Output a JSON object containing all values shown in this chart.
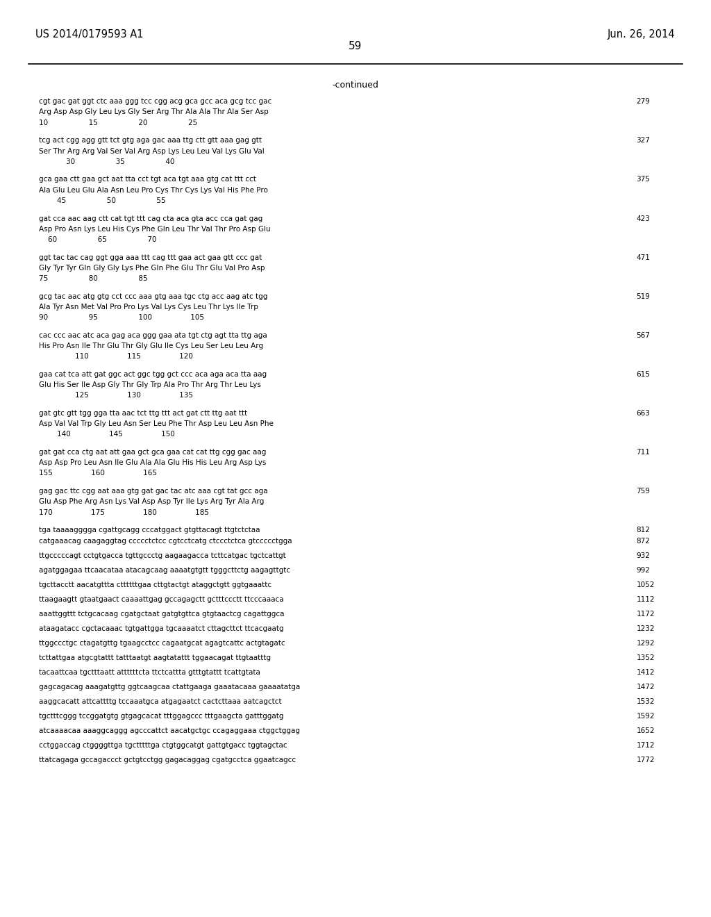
{
  "patent_left": "US 2014/0179593 A1",
  "patent_right": "Jun. 26, 2014",
  "page_number": "59",
  "continued_label": "-continued",
  "background_color": "#ffffff",
  "text_color": "#000000",
  "font_size_header": 10.5,
  "font_size_page": 11,
  "sequence_blocks": [
    {
      "dna": "cgt gac gat ggt ctc aaa ggg tcc cgg acg gca gcc aca gcg tcc gac",
      "aa": "Arg Asp Asp Gly Leu Lys Gly Ser Arg Thr Ala Ala Thr Ala Ser Asp",
      "nums": "10                  15                  20                  25",
      "num_right": "279"
    },
    {
      "dna": "tcg act cgg agg gtt tct gtg aga gac aaa ttg ctt gtt aaa gag gtt",
      "aa": "Ser Thr Arg Arg Val Ser Val Arg Asp Lys Leu Leu Val Lys Glu Val",
      "nums": "            30                  35                  40",
      "num_right": "327"
    },
    {
      "dna": "gca gaa ctt gaa gct aat tta cct tgt aca tgt aaa gtg cat ttt cct",
      "aa": "Ala Glu Leu Glu Ala Asn Leu Pro Cys Thr Cys Lys Val His Phe Pro",
      "nums": "        45                  50                  55",
      "num_right": "375"
    },
    {
      "dna": "gat cca aac aag ctt cat tgt ttt cag cta aca gta acc cca gat gag",
      "aa": "Asp Pro Asn Lys Leu His Cys Phe Gln Leu Thr Val Thr Pro Asp Glu",
      "nums": "    60                  65                  70",
      "num_right": "423"
    },
    {
      "dna": "ggt tac tac cag ggt gga aaa ttt cag ttt gaa act gaa gtt ccc gat",
      "aa": "Gly Tyr Tyr Gln Gly Gly Lys Phe Gln Phe Glu Thr Glu Val Pro Asp",
      "nums": "75                  80                  85",
      "num_right": "471"
    },
    {
      "dna": "gcg tac aac atg gtg cct ccc aaa gtg aaa tgc ctg acc aag atc tgg",
      "aa": "Ala Tyr Asn Met Val Pro Pro Lys Val Lys Cys Leu Thr Lys Ile Trp",
      "nums": "90                  95                  100                 105",
      "num_right": "519"
    },
    {
      "dna": "cac ccc aac atc aca gag aca ggg gaa ata tgt ctg agt tta ttg aga",
      "aa": "His Pro Asn Ile Thr Glu Thr Gly Glu Ile Cys Leu Ser Leu Leu Arg",
      "nums": "                110                 115                 120",
      "num_right": "567"
    },
    {
      "dna": "gaa cat tca att gat ggc act ggc tgg gct ccc aca aga aca tta aag",
      "aa": "Glu His Ser Ile Asp Gly Thr Gly Trp Ala Pro Thr Arg Thr Leu Lys",
      "nums": "                125                 130                 135",
      "num_right": "615"
    },
    {
      "dna": "gat gtc gtt tgg gga tta aac tct ttg ttt act gat ctt ttg aat ttt",
      "aa": "Asp Val Val Trp Gly Leu Asn Ser Leu Phe Thr Asp Leu Leu Asn Phe",
      "nums": "        140                 145                 150",
      "num_right": "663"
    },
    {
      "dna": "gat gat cca ctg aat att gaa gct gca gaa cat cat ttg cgg gac aag",
      "aa": "Asp Asp Pro Leu Asn Ile Glu Ala Ala Glu His His Leu Arg Asp Lys",
      "nums": "155                 160                 165",
      "num_right": "711"
    },
    {
      "dna": "gag gac ttc cgg aat aaa gtg gat gac tac atc aaa cgt tat gcc aga",
      "aa": "Glu Asp Phe Arg Asn Lys Val Asp Asp Tyr Ile Lys Arg Tyr Ala Arg",
      "nums": "170                 175                 180                 185",
      "num_right": "759"
    }
  ],
  "plain_lines": [
    {
      "text": "tga taaaagggga cgattgcagg cccatggact gtgttacagt ttgtctctaa",
      "num": "812"
    },
    {
      "text": "catgaaacag caagaggtag ccccctctcc cgtcctcatg ctccctctca gtccccctgga",
      "num": "872"
    },
    {
      "text": "",
      "num": ""
    },
    {
      "text": "ttgcccccagt cctgtgacca tgttgccctg aagaagacca tcttcatgac tgctcattgt",
      "num": "932"
    },
    {
      "text": "",
      "num": ""
    },
    {
      "text": "agatggagaa ttcaacataa atacagcaag aaaatgtgtt tgggcttctg aagagttgtc",
      "num": "992"
    },
    {
      "text": "",
      "num": ""
    },
    {
      "text": "tgcttacctt aacatgttta cttttttgaa cttgtactgt ataggctgtt ggtgaaattc",
      "num": "1052"
    },
    {
      "text": "",
      "num": ""
    },
    {
      "text": "ttaagaagtt gtaatgaact caaaattgag gccagagctt gctttccctt ttcccaaaca",
      "num": "1112"
    },
    {
      "text": "",
      "num": ""
    },
    {
      "text": "aaattggttt tctgcacaag cgatgctaat gatgtgttca gtgtaactcg cagattggca",
      "num": "1172"
    },
    {
      "text": "",
      "num": ""
    },
    {
      "text": "ataagatacc cgctacaaac tgtgattgga tgcaaaatct cttagcttct ttcacgaatg",
      "num": "1232"
    },
    {
      "text": "",
      "num": ""
    },
    {
      "text": "ttggccctgc ctagatgttg tgaagcctcc cagaatgcat agagtcattc actgtagatc",
      "num": "1292"
    },
    {
      "text": "",
      "num": ""
    },
    {
      "text": "tcttattgaa atgcgtattt tatttaatgt aagtatattt tggaacagat ttgtaatttg",
      "num": "1352"
    },
    {
      "text": "",
      "num": ""
    },
    {
      "text": "tacaattcaa tgctttaatt attttttcta ttctcattta gtttgtattt tcattgtata",
      "num": "1412"
    },
    {
      "text": "",
      "num": ""
    },
    {
      "text": "gagcagacag aaagatgttg ggtcaagcaa ctattgaaga gaaatacaaa gaaaatatga",
      "num": "1472"
    },
    {
      "text": "",
      "num": ""
    },
    {
      "text": "aaggcacatt attcattttg tccaaatgca atgagaatct cactcttaaa aatcagctct",
      "num": "1532"
    },
    {
      "text": "",
      "num": ""
    },
    {
      "text": "tgctttcggg tccggatgtg gtgagcacat tttggagccc tttgaagcta gatttggatg",
      "num": "1592"
    },
    {
      "text": "",
      "num": ""
    },
    {
      "text": "atcaaaacaa aaaggcaggg agcccattct aacatgctgc ccagaggaaa ctggctggag",
      "num": "1652"
    },
    {
      "text": "",
      "num": ""
    },
    {
      "text": "cctggaccag ctggggttga tgctttttga ctgtggcatgt gattgtgacc tggtagctac",
      "num": "1712"
    },
    {
      "text": "",
      "num": ""
    },
    {
      "text": "ttatcagaga gccagaccct gctgtcctgg gagacaggag cgatgcctca ggaatcagcc",
      "num": "1772"
    }
  ]
}
